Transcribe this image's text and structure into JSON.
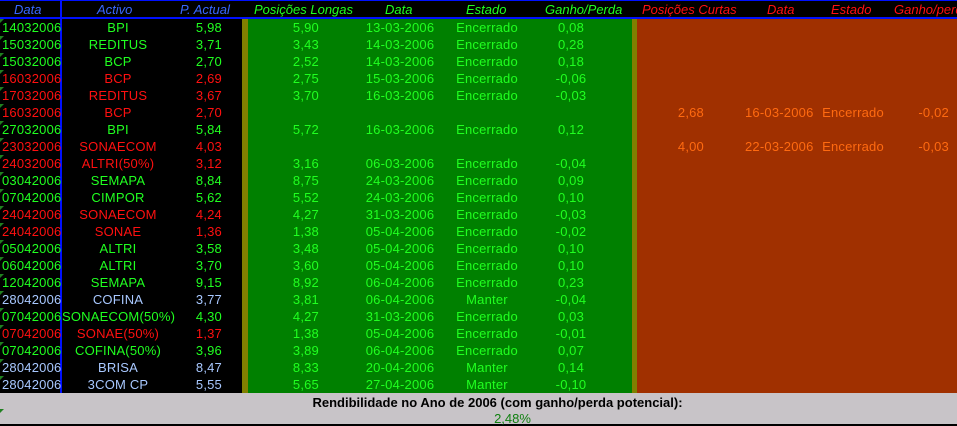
{
  "header": {
    "data": "Data",
    "activo": "Activo",
    "p_actual": "P. Actual",
    "long_positions": "Posições Longas",
    "long_date": "Data",
    "long_state": "Estado",
    "long_gain": "Ganho/Perda",
    "short_positions": "Posições Curtas",
    "short_date": "Data",
    "short_state": "Estado",
    "short_gain": "Ganho/perda"
  },
  "colors": {
    "green": "#20ff20",
    "red": "#ff1010",
    "blue": "#a8c8ff",
    "long_bg": "#008000",
    "short_bg": "#a03000",
    "short_text": "#ff6a10"
  },
  "rows": [
    {
      "color": "g",
      "date": "14032006",
      "asset": "BPI",
      "price": "5,98",
      "lp": "5,90",
      "ld": "13-03-2006",
      "le": "Encerrado",
      "lg": "0,08"
    },
    {
      "color": "g",
      "date": "15032006",
      "asset": "REDITUS",
      "price": "3,71",
      "lp": "3,43",
      "ld": "14-03-2006",
      "le": "Encerrado",
      "lg": "0,28"
    },
    {
      "color": "g",
      "date": "15032006",
      "asset": "BCP",
      "price": "2,70",
      "lp": "2,52",
      "ld": "14-03-2006",
      "le": "Encerrado",
      "lg": "0,18"
    },
    {
      "color": "r",
      "date": "16032006",
      "asset": "BCP",
      "price": "2,69",
      "lp": "2,75",
      "ld": "15-03-2006",
      "le": "Encerrado",
      "lg": "-0,06"
    },
    {
      "color": "r",
      "date": "17032006",
      "asset": "REDITUS",
      "price": "3,67",
      "lp": "3,70",
      "ld": "16-03-2006",
      "le": "Encerrado",
      "lg": "-0,03"
    },
    {
      "color": "r",
      "date": "16032006",
      "asset": "BCP",
      "price": "2,70",
      "sp": "2,68",
      "sd": "16-03-2006",
      "se": "Encerrado",
      "sg": "-0,02"
    },
    {
      "color": "g",
      "date": "27032006",
      "asset": "BPI",
      "price": "5,84",
      "lp": "5,72",
      "ld": "16-03-2006",
      "le": "Encerrado",
      "lg": "0,12"
    },
    {
      "color": "r",
      "date": "23032006",
      "asset": "SONAECOM",
      "price": "4,03",
      "sp": "4,00",
      "sd": "22-03-2006",
      "se": "Encerrado",
      "sg": "-0,03"
    },
    {
      "color": "r",
      "date": "24032006",
      "asset": "ALTRI(50%)",
      "price": "3,12",
      "lp": "3,16",
      "ld": "06-03-2006",
      "le": "Encerrado",
      "lg": "-0,04"
    },
    {
      "color": "g",
      "date": "03042006",
      "asset": "SEMAPA",
      "price": "8,84",
      "lp": "8,75",
      "ld": "24-03-2006",
      "le": "Encerrado",
      "lg": "0,09"
    },
    {
      "color": "g",
      "date": "07042006",
      "asset": "CIMPOR",
      "price": "5,62",
      "lp": "5,52",
      "ld": "24-03-2006",
      "le": "Encerrado",
      "lg": "0,10"
    },
    {
      "color": "r",
      "date": "24042006",
      "asset": "SONAECOM",
      "price": "4,24",
      "lp": "4,27",
      "ld": "31-03-2006",
      "le": "Encerrado",
      "lg": "-0,03"
    },
    {
      "color": "r",
      "date": "24042006",
      "asset": "SONAE",
      "price": "1,36",
      "lp": "1,38",
      "ld": "05-04-2006",
      "le": "Encerrado",
      "lg": "-0,02"
    },
    {
      "color": "g",
      "date": "05042006",
      "asset": "ALTRI",
      "price": "3,58",
      "lp": "3,48",
      "ld": "05-04-2006",
      "le": "Encerrado",
      "lg": "0,10"
    },
    {
      "color": "g",
      "date": "06042006",
      "asset": "ALTRI",
      "price": "3,70",
      "lp": "3,60",
      "ld": "05-04-2006",
      "le": "Encerrado",
      "lg": "0,10"
    },
    {
      "color": "g",
      "date": "12042006",
      "asset": "SEMAPA",
      "price": "9,15",
      "lp": "8,92",
      "ld": "06-04-2006",
      "le": "Encerrado",
      "lg": "0,23"
    },
    {
      "color": "b",
      "date": "28042006",
      "asset": "COFINA",
      "price": "3,77",
      "lp": "3,81",
      "ld": "06-04-2006",
      "le": "Manter",
      "lg": "-0,04"
    },
    {
      "color": "g",
      "date": "07042006",
      "asset": "SONAECOM(50%)",
      "price": "4,30",
      "lp": "4,27",
      "ld": "31-03-2006",
      "le": "Encerrado",
      "lg": "0,03"
    },
    {
      "color": "r",
      "date": "07042006",
      "asset": "SONAE(50%)",
      "price": "1,37",
      "lp": "1,38",
      "ld": "05-04-2006",
      "le": "Encerrado",
      "lg": "-0,01"
    },
    {
      "color": "g",
      "date": "07042006",
      "asset": "COFINA(50%)",
      "price": "3,96",
      "lp": "3,89",
      "ld": "06-04-2006",
      "le": "Encerrado",
      "lg": "0,07"
    },
    {
      "color": "b",
      "date": "28042006",
      "asset": "BRISA",
      "price": "8,47",
      "lp": "8,33",
      "ld": "20-04-2006",
      "le": "Manter",
      "lg": "0,14"
    },
    {
      "color": "b",
      "date": "28042006",
      "asset": "3COM CP",
      "price": "5,55",
      "lp": "5,65",
      "ld": "27-04-2006",
      "le": "Manter",
      "lg": "-0,10"
    }
  ],
  "footer": {
    "label": "Rendibilidade no Ano de 2006 (com ganho/perda potencial):",
    "value": "2,48%"
  }
}
